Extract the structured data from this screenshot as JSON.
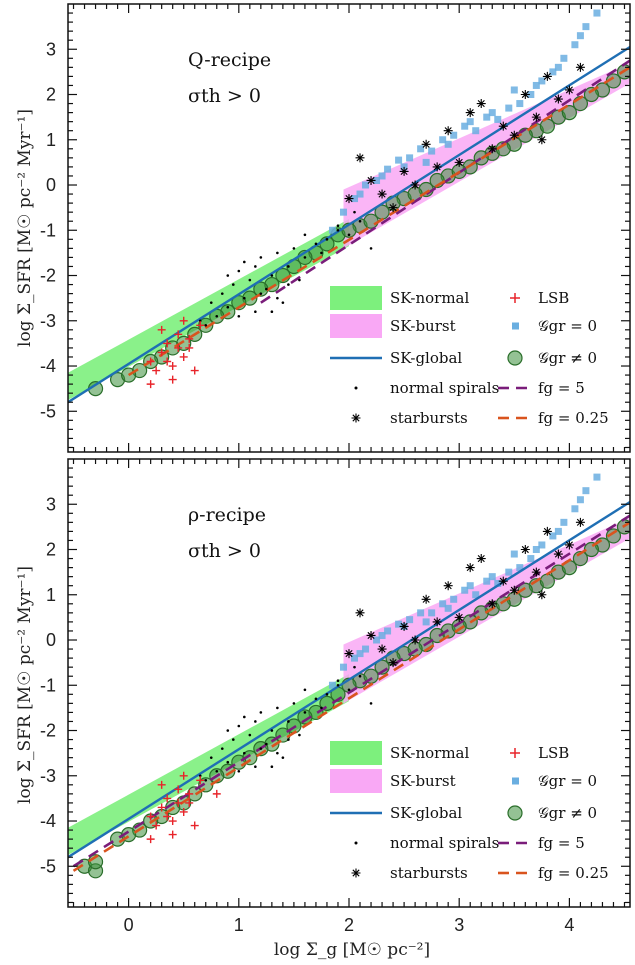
{
  "figure": {
    "xlabel": "log Σ_g [M☉ pc⁻²]",
    "ylabel": "log Σ_SFR [M☉ pc⁻² Myr⁻¹]",
    "xlim": [
      -0.55,
      4.55
    ],
    "ylim": [
      -5.9,
      4.0
    ],
    "xticks": [
      0,
      1,
      2,
      3,
      4
    ],
    "yticks": [
      -5,
      -4,
      -3,
      -2,
      -1,
      0,
      1,
      2,
      3
    ],
    "colors": {
      "sk_normal": "#7df07d",
      "sk_burst": "#f9a8f5",
      "sk_global": "#1f6fb4",
      "lsb": "#e8242a",
      "ggr_zero": "#6aaee0",
      "ggr_nonzero": "#3c8f3c",
      "fg5": "#7a1d7a",
      "fg025": "#d9541e"
    }
  },
  "legend": {
    "sk_normal": "SK-normal",
    "sk_burst": "SK-burst",
    "sk_global": "SK-global",
    "normal_spirals": "normal spirals",
    "starbursts": "starbursts",
    "lsb": "LSB",
    "ggr0": "𝒢gr = 0",
    "ggrnz": "𝒢gr ≠ 0",
    "fg5": "fg = 5",
    "fg025": "fg = 0.25"
  },
  "chart_data": [
    {
      "type": "scatter",
      "annotation_line1": "Q-recipe",
      "annotation_line2": "σth > 0",
      "series": [
        {
          "name": "SK-normal",
          "kind": "band",
          "x": [
            -0.55,
            2.0
          ],
          "y_low": [
            -4.75,
            -1.35
          ],
          "y_high": [
            -4.15,
            -0.75
          ]
        },
        {
          "name": "SK-burst",
          "kind": "band",
          "x": [
            1.95,
            4.55
          ],
          "y_low": [
            -1.4,
            2.25
          ],
          "y_high": [
            -0.1,
            2.7
          ]
        },
        {
          "name": "SK-global",
          "kind": "line",
          "x": [
            -0.55,
            4.55
          ],
          "y": [
            -4.8,
            3.05
          ]
        },
        {
          "name": "fg = 5",
          "kind": "dashed",
          "x": [
            1.2,
            4.55
          ],
          "y": [
            -2.6,
            2.75
          ]
        },
        {
          "name": "fg = 0.25",
          "kind": "dashed",
          "x": [
            0.0,
            4.55
          ],
          "y": [
            -4.2,
            2.6
          ]
        },
        {
          "name": "normal spirals",
          "kind": "dot",
          "x": [
            0.65,
            0.75,
            0.8,
            0.85,
            0.9,
            0.95,
            1.0,
            1.05,
            1.1,
            1.15,
            1.2,
            1.25,
            1.3,
            1.35,
            1.4,
            1.45,
            1.5,
            1.55,
            1.6,
            1.7,
            1.8,
            1.9,
            2.0,
            2.1,
            2.2,
            0.7,
            0.9,
            1.05,
            1.2,
            1.3,
            1.45,
            1.6,
            1.75,
            1.9,
            2.05,
            1.0,
            1.15,
            1.35
          ],
          "y": [
            -3.0,
            -2.6,
            -2.9,
            -2.4,
            -2.7,
            -2.2,
            -1.9,
            -2.5,
            -2.1,
            -2.8,
            -1.6,
            -2.3,
            -2.0,
            -1.5,
            -2.6,
            -1.8,
            -1.4,
            -2.1,
            -1.6,
            -1.3,
            -1.2,
            -1.0,
            -1.1,
            -0.8,
            -1.4,
            -3.1,
            -2.0,
            -1.7,
            -2.4,
            -2.8,
            -2.2,
            -1.1,
            -1.5,
            -0.9,
            -0.6,
            -2.9,
            -1.8,
            -2.5
          ]
        },
        {
          "name": "starbursts",
          "kind": "star",
          "x": [
            2.1,
            2.3,
            2.5,
            2.7,
            2.9,
            3.0,
            3.2,
            3.4,
            3.5,
            3.7,
            3.8,
            3.9,
            4.0,
            2.4,
            2.6,
            2.8,
            3.1,
            3.3,
            3.6,
            2.2,
            3.75,
            4.1,
            2.0
          ],
          "y": [
            0.6,
            -0.2,
            0.3,
            0.9,
            1.2,
            0.5,
            1.8,
            1.3,
            1.1,
            1.5,
            2.4,
            1.9,
            2.1,
            -0.5,
            0.0,
            0.4,
            1.6,
            0.8,
            2.0,
            0.1,
            1.0,
            2.6,
            -0.3
          ]
        },
        {
          "name": "LSB",
          "kind": "cross",
          "x": [
            0.2,
            0.25,
            0.3,
            0.35,
            0.4,
            0.45,
            0.5,
            0.55,
            0.6,
            0.3,
            0.4,
            0.5,
            0.65,
            0.35,
            0.2,
            0.45,
            0.55
          ],
          "y": [
            -3.9,
            -4.1,
            -3.7,
            -3.5,
            -4.0,
            -3.3,
            -3.8,
            -3.6,
            -4.1,
            -3.2,
            -4.3,
            -3.0,
            -3.1,
            -3.9,
            -4.4,
            -3.6,
            -3.4
          ]
        },
        {
          "name": "𝒢gr = 0",
          "kind": "square",
          "x": [
            1.95,
            2.05,
            2.15,
            2.25,
            2.35,
            2.45,
            2.55,
            2.65,
            2.75,
            2.85,
            2.95,
            3.05,
            3.15,
            3.25,
            3.35,
            3.45,
            3.55,
            3.65,
            3.75,
            3.85,
            3.95,
            4.05,
            4.15,
            4.25,
            1.85,
            2.1,
            2.3,
            2.5,
            2.7,
            2.9,
            3.1,
            3.3,
            3.5,
            3.7,
            3.9,
            4.1
          ],
          "y": [
            -0.6,
            -0.3,
            0.0,
            0.1,
            0.35,
            0.55,
            0.6,
            0.8,
            0.75,
            1.0,
            1.1,
            1.3,
            1.2,
            1.5,
            1.45,
            1.7,
            1.8,
            2.0,
            2.3,
            2.5,
            2.8,
            3.1,
            3.5,
            3.8,
            -1.0,
            -0.2,
            0.2,
            0.4,
            0.5,
            0.9,
            1.4,
            1.6,
            2.1,
            2.2,
            2.6,
            3.3
          ]
        },
        {
          "name": "𝒢gr ≠ 0",
          "kind": "circle",
          "x": [
            -0.1,
            0.1,
            0.3,
            0.5,
            0.7,
            0.9,
            1.1,
            1.3,
            1.5,
            1.7,
            1.9,
            2.1,
            2.3,
            2.5,
            2.7,
            2.9,
            3.1,
            3.3,
            3.5,
            3.7,
            3.9,
            4.1,
            4.3,
            4.5,
            0.0,
            0.2,
            0.4,
            0.6,
            0.8,
            1.0,
            1.2,
            1.4,
            1.6,
            1.8,
            2.0,
            2.2,
            2.4,
            2.6,
            2.8,
            3.0,
            3.2,
            3.4,
            3.6,
            3.8,
            4.0,
            4.2,
            4.4,
            -0.3
          ],
          "y": [
            -4.3,
            -4.1,
            -3.8,
            -3.5,
            -3.1,
            -2.8,
            -2.5,
            -2.2,
            -1.8,
            -1.5,
            -1.1,
            -0.9,
            -0.6,
            -0.3,
            -0.1,
            0.2,
            0.4,
            0.7,
            0.9,
            1.2,
            1.5,
            1.8,
            2.1,
            2.5,
            -4.2,
            -3.9,
            -3.6,
            -3.3,
            -2.9,
            -2.6,
            -2.3,
            -2.0,
            -1.6,
            -1.3,
            -1.0,
            -0.8,
            -0.4,
            -0.2,
            0.1,
            0.3,
            0.6,
            0.8,
            1.1,
            1.3,
            1.6,
            2.0,
            2.3,
            -4.5
          ]
        }
      ]
    },
    {
      "type": "scatter",
      "annotation_line1": "ρ-recipe",
      "annotation_line2": "σth > 0",
      "series": [
        {
          "name": "SK-normal",
          "kind": "band",
          "x": [
            -0.55,
            2.0
          ],
          "y_low": [
            -4.75,
            -1.35
          ],
          "y_high": [
            -4.15,
            -0.75
          ]
        },
        {
          "name": "SK-burst",
          "kind": "band",
          "x": [
            1.95,
            4.55
          ],
          "y_low": [
            -1.4,
            2.25
          ],
          "y_high": [
            -0.1,
            2.7
          ]
        },
        {
          "name": "SK-global",
          "kind": "line",
          "x": [
            -0.55,
            4.55
          ],
          "y": [
            -4.8,
            3.05
          ]
        },
        {
          "name": "fg = 5",
          "kind": "dashed",
          "x": [
            -0.5,
            4.55
          ],
          "y": [
            -5.0,
            2.75
          ]
        },
        {
          "name": "fg = 0.25",
          "kind": "dashed",
          "x": [
            -0.5,
            4.55
          ],
          "y": [
            -5.1,
            2.6
          ]
        },
        {
          "name": "normal spirals",
          "kind": "dot",
          "x": [
            0.65,
            0.75,
            0.8,
            0.85,
            0.9,
            0.95,
            1.0,
            1.05,
            1.1,
            1.15,
            1.2,
            1.25,
            1.3,
            1.35,
            1.4,
            1.45,
            1.5,
            1.55,
            1.6,
            1.7,
            1.8,
            1.9,
            2.0,
            2.1,
            2.2,
            0.7,
            0.9,
            1.05,
            1.2,
            1.3,
            1.45,
            1.6,
            1.75,
            1.9,
            2.05,
            1.0,
            1.15,
            1.35
          ],
          "y": [
            -3.0,
            -2.6,
            -2.9,
            -2.4,
            -2.7,
            -2.2,
            -1.9,
            -2.5,
            -2.1,
            -2.8,
            -1.6,
            -2.3,
            -2.0,
            -1.5,
            -2.6,
            -1.8,
            -1.4,
            -2.1,
            -1.6,
            -1.3,
            -1.2,
            -1.0,
            -1.1,
            -0.8,
            -1.4,
            -3.1,
            -2.0,
            -1.7,
            -2.4,
            -2.8,
            -2.2,
            -1.1,
            -1.5,
            -0.9,
            -0.6,
            -2.9,
            -1.8,
            -2.5
          ]
        },
        {
          "name": "starbursts",
          "kind": "star",
          "x": [
            2.1,
            2.3,
            2.5,
            2.7,
            2.9,
            3.0,
            3.2,
            3.4,
            3.5,
            3.7,
            3.8,
            3.9,
            4.0,
            2.4,
            2.6,
            2.8,
            3.1,
            3.3,
            3.6,
            2.2,
            3.75,
            4.1,
            2.0
          ],
          "y": [
            0.6,
            -0.2,
            0.3,
            0.9,
            1.2,
            0.5,
            1.8,
            1.3,
            1.1,
            1.5,
            2.4,
            1.9,
            2.1,
            -0.5,
            0.0,
            0.4,
            1.6,
            0.8,
            2.0,
            0.1,
            1.0,
            2.6,
            -0.3
          ]
        },
        {
          "name": "LSB",
          "kind": "cross",
          "x": [
            0.2,
            0.25,
            0.3,
            0.35,
            0.4,
            0.45,
            0.5,
            0.55,
            0.6,
            0.3,
            0.4,
            0.5,
            0.65,
            0.35,
            0.2,
            0.45,
            0.55,
            0.8
          ],
          "y": [
            -3.9,
            -4.1,
            -3.7,
            -3.5,
            -4.0,
            -3.3,
            -3.8,
            -3.6,
            -4.1,
            -3.2,
            -4.3,
            -3.0,
            -3.1,
            -3.9,
            -4.4,
            -3.6,
            -3.4,
            -3.4
          ]
        },
        {
          "name": "𝒢gr = 0",
          "kind": "square",
          "x": [
            1.95,
            2.05,
            2.15,
            2.25,
            2.35,
            2.45,
            2.55,
            2.65,
            2.75,
            2.85,
            2.95,
            3.05,
            3.15,
            3.25,
            3.35,
            3.45,
            3.55,
            3.65,
            3.75,
            3.85,
            3.95,
            4.05,
            4.15,
            4.25,
            1.85,
            2.1,
            2.3,
            2.5,
            2.7,
            2.9,
            3.1,
            3.3,
            3.5,
            3.7,
            3.9,
            4.1
          ],
          "y": [
            -0.6,
            -0.4,
            -0.2,
            0.0,
            0.2,
            0.35,
            0.45,
            0.6,
            0.6,
            0.8,
            0.9,
            1.1,
            1.0,
            1.3,
            1.25,
            1.5,
            1.6,
            1.8,
            2.1,
            2.3,
            2.6,
            2.9,
            3.3,
            3.6,
            -1.0,
            -0.3,
            0.1,
            0.3,
            0.4,
            0.7,
            1.2,
            1.4,
            1.9,
            2.0,
            2.4,
            3.1
          ]
        },
        {
          "name": "𝒢gr ≠ 0",
          "kind": "circle",
          "x": [
            -0.4,
            -0.3,
            -0.1,
            0.1,
            0.3,
            0.5,
            0.7,
            0.9,
            1.1,
            1.3,
            1.5,
            1.7,
            1.9,
            2.1,
            2.3,
            2.5,
            2.7,
            2.9,
            3.1,
            3.3,
            3.5,
            3.7,
            3.9,
            4.1,
            4.3,
            4.5,
            0.0,
            0.2,
            0.4,
            0.6,
            0.8,
            1.0,
            1.2,
            1.4,
            1.6,
            1.8,
            2.0,
            2.2,
            2.4,
            2.6,
            2.8,
            3.0,
            3.2,
            3.4,
            3.6,
            3.8,
            4.0,
            4.2,
            4.4,
            -0.3
          ],
          "y": [
            -5.0,
            -5.1,
            -4.4,
            -4.2,
            -3.9,
            -3.6,
            -3.2,
            -2.9,
            -2.6,
            -2.3,
            -1.9,
            -1.6,
            -1.2,
            -0.9,
            -0.6,
            -0.3,
            -0.1,
            0.2,
            0.4,
            0.7,
            0.9,
            1.2,
            1.5,
            1.8,
            2.1,
            2.5,
            -4.3,
            -4.0,
            -3.7,
            -3.4,
            -3.0,
            -2.7,
            -2.4,
            -2.1,
            -1.7,
            -1.4,
            -1.0,
            -0.8,
            -0.4,
            -0.2,
            0.1,
            0.3,
            0.6,
            0.8,
            1.1,
            1.3,
            1.6,
            2.0,
            2.3,
            -4.9
          ]
        }
      ]
    }
  ]
}
